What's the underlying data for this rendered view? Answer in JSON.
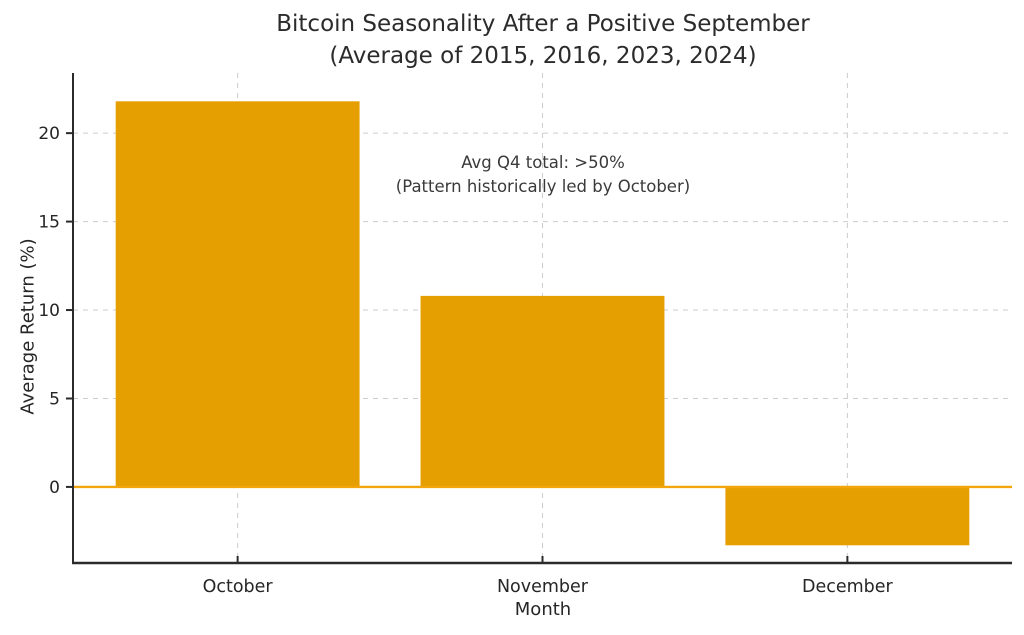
{
  "title": {
    "line1": "Bitcoin Seasonality After a Positive September",
    "line2": "(Average of 2015, 2016, 2023, 2024)"
  },
  "annotation": {
    "line1": "Avg Q4 total: >50%",
    "line2": "(Pattern historically led by October)"
  },
  "chart_data": {
    "type": "bar",
    "title": "Bitcoin Seasonality After a Positive September (Average of 2015, 2016, 2023, 2024)",
    "categories": [
      "October",
      "November",
      "December"
    ],
    "values": [
      21.8,
      10.8,
      -3.3
    ],
    "xlabel": "Month",
    "ylabel": "Average Return (%)",
    "yticks": [
      0,
      5,
      10,
      15,
      20
    ],
    "ylim": [
      -4.3,
      23.4
    ],
    "grid": true,
    "grid_style": "dashed",
    "legend": "none",
    "annotation_text": "Avg Q4 total: >50%\n(Pattern historically led by October)",
    "bar_color": "#E69F00",
    "zero_line_color": "#F2A50C",
    "grid_color": "#cccccc",
    "spine_color": "#2b2b2b",
    "text_color": "#262626"
  }
}
